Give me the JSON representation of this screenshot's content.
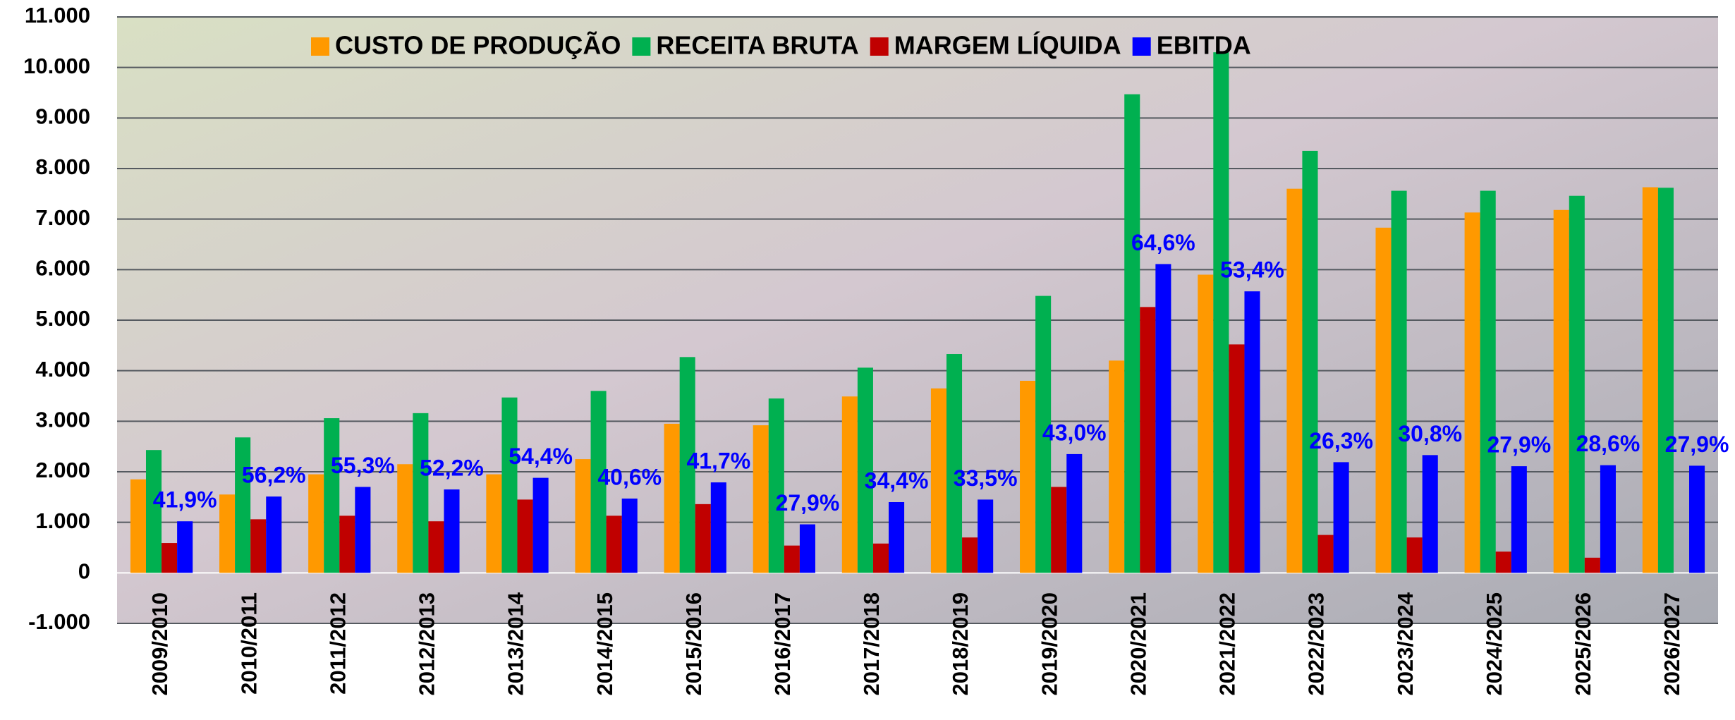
{
  "chart_data": {
    "type": "bar",
    "categories": [
      "2009/2010",
      "2010/2011",
      "2011/2012",
      "2012/2013",
      "2013/2014",
      "2014/2015",
      "2015/2016",
      "2016/2017",
      "2017/2018",
      "2018/2019",
      "2019/2020",
      "2020/2021",
      "2021/2022",
      "2022/2023",
      "2023/2024",
      "2024/2025",
      "2025/2026",
      "2026/2027"
    ],
    "series": [
      {
        "name": "CUSTO DE PRODUÇÃO",
        "color": "#ff9900",
        "values": [
          1850,
          1550,
          1950,
          2150,
          1950,
          2250,
          2950,
          2920,
          3490,
          3650,
          3800,
          4200,
          5900,
          7600,
          6830,
          7130,
          7180,
          7630
        ]
      },
      {
        "name": "RECEITA BRUTA",
        "color": "#00b050",
        "values": [
          2430,
          2680,
          3060,
          3160,
          3470,
          3600,
          4270,
          3450,
          4060,
          4330,
          5480,
          9470,
          10300,
          8350,
          7560,
          7560,
          7460,
          7620
        ]
      },
      {
        "name": "MARGEM LÍQUIDA",
        "color": "#c00000",
        "values": [
          590,
          1060,
          1130,
          1020,
          1450,
          1130,
          1360,
          540,
          580,
          700,
          1700,
          5260,
          4520,
          750,
          700,
          420,
          300,
          null
        ]
      },
      {
        "name": "EBITDA",
        "color": "#0000ff",
        "values": [
          1020,
          1510,
          1700,
          1650,
          1880,
          1470,
          1790,
          960,
          1400,
          1450,
          2350,
          6110,
          5570,
          2190,
          2330,
          2110,
          2130,
          2120
        ]
      }
    ],
    "annotations": [
      "41,9%",
      "56,2%",
      "55,3%",
      "52,2%",
      "54,4%",
      "40,6%",
      "41,7%",
      "27,9%",
      "34,4%",
      "33,5%",
      "43,0%",
      "64,6%",
      "53,4%",
      "26,3%",
      "30,8%",
      "27,9%",
      "28,6%",
      "27,9%"
    ],
    "ylim": [
      -1000,
      11000
    ],
    "yticks": [
      {
        "value": -1000,
        "label": "-1.000"
      },
      0,
      {
        "value": 1000,
        "label": "1.000"
      },
      {
        "value": 2000,
        "label": "2.000"
      },
      {
        "value": 3000,
        "label": "3.000"
      },
      {
        "value": 4000,
        "label": "4.000"
      },
      {
        "value": 5000,
        "label": "5.000"
      },
      {
        "value": 6000,
        "label": "6.000"
      },
      {
        "value": 7000,
        "label": "7.000"
      },
      {
        "value": 8000,
        "label": "8.000"
      },
      {
        "value": 9000,
        "label": "9.000"
      },
      {
        "value": 10000,
        "label": "10.000"
      },
      {
        "value": 11000,
        "label": "11.000"
      }
    ],
    "grid": true,
    "legend": "top"
  }
}
